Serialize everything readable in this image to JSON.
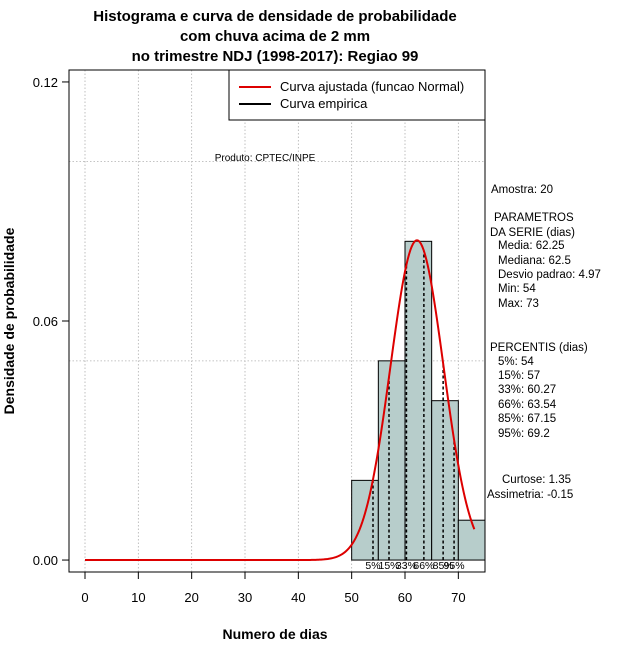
{
  "chart_data": {
    "type": "bar",
    "title_lines": [
      "Histograma e curva de densidade de probabilidade",
      "com chuva acima de 2 mm",
      "no trimestre NDJ (1998-2017): Regiao 99"
    ],
    "xlabel": "Numero de dias",
    "ylabel": "Densidade de probabilidade",
    "xlim": [
      -3,
      75
    ],
    "ylim": [
      -0.003,
      0.123
    ],
    "x_ticks": [
      0,
      10,
      20,
      30,
      40,
      50,
      60,
      70
    ],
    "x_tick_labels": [
      "0",
      "10",
      "20",
      "30",
      "40",
      "50",
      "60",
      "70"
    ],
    "y_ticks": [
      0.0,
      0.06,
      0.12
    ],
    "y_tick_labels": [
      "0.00",
      "0.06",
      "0.12"
    ],
    "grid": true,
    "grid_x": [
      0,
      10,
      20,
      30,
      40,
      50,
      60,
      70
    ],
    "grid_y": [
      0.05,
      0.1
    ],
    "bins": [
      {
        "x0": 50,
        "x1": 55,
        "density": 0.02
      },
      {
        "x0": 55,
        "x1": 60,
        "density": 0.05
      },
      {
        "x0": 60,
        "x1": 65,
        "density": 0.08
      },
      {
        "x0": 65,
        "x1": 70,
        "density": 0.04
      },
      {
        "x0": 70,
        "x1": 75,
        "density": 0.01
      }
    ],
    "bar_color": "#b7cdcb",
    "normal_curve": {
      "mean": 62.25,
      "sd": 4.97,
      "x_from": 0,
      "x_to": 73,
      "color": "#dd0000"
    },
    "percentile_lines": [
      54,
      57,
      60.27,
      63.54,
      67.15,
      69.2
    ],
    "percentile_labels": [
      "5%",
      "15%",
      "33%",
      "66%",
      "85%",
      "95%"
    ],
    "legend": {
      "position": "top-right",
      "entries": [
        {
          "label": "Curva ajustada (funcao Normal)",
          "color": "#dd0000"
        },
        {
          "label": "Curva empirica",
          "color": "#000000"
        }
      ]
    },
    "annotation": "Produto: CPTEC/INPE"
  },
  "side_panel": {
    "lines": [
      "Amostra: 20",
      "PARAMETROS",
      "DA SERIE (dias)",
      "Media: 62.25",
      "Mediana: 62.5",
      "Desvio padrao: 4.97",
      "Min: 54",
      "Max: 73",
      "PERCENTIS (dias)",
      "5%: 54",
      "15%: 57",
      "33%: 60.27",
      "66%: 63.54",
      "85%: 67.15",
      "95%: 69.2",
      "Curtose: 1.35",
      "Assimetria: -0.15"
    ]
  }
}
